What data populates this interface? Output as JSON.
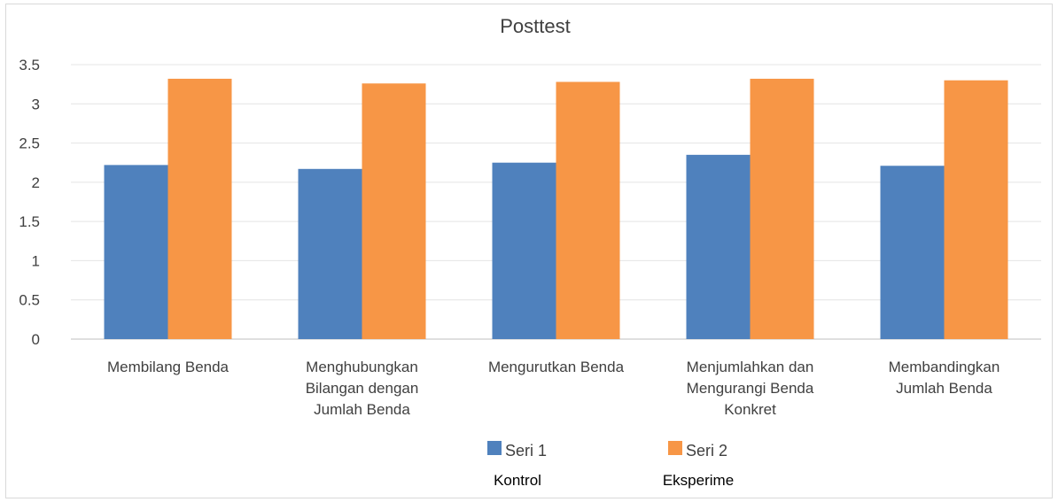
{
  "chart_data": {
    "type": "bar",
    "title": "Posttest",
    "categories": [
      [
        "Membilang Benda"
      ],
      [
        "Menghubungkan",
        "Bilangan dengan",
        "Jumlah Benda"
      ],
      [
        "Mengurutkan Benda"
      ],
      [
        "Menjumlahkan dan",
        "Mengurangi Benda",
        "Konkret"
      ],
      [
        "Membandingkan",
        "Jumlah Benda"
      ]
    ],
    "series": [
      {
        "name": "Seri 1",
        "values": [
          2.22,
          2.17,
          2.25,
          2.35,
          2.21
        ],
        "color": "#4f81bd"
      },
      {
        "name": "Seri 2",
        "values": [
          3.32,
          3.26,
          3.28,
          3.32,
          3.3
        ],
        "color": "#f79646"
      }
    ],
    "ylim": [
      0,
      3.5
    ],
    "yticks": [
      "0",
      "0.5",
      "1",
      "1.5",
      "2",
      "2.5",
      "3",
      "3.5"
    ],
    "grid": true,
    "legend_position": "bottom",
    "annotations": {
      "series1_note": "Kontrol",
      "series2_note": "Eksperime"
    }
  }
}
